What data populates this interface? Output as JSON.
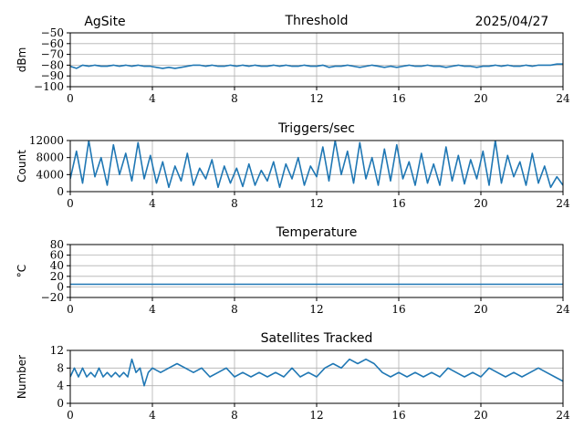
{
  "header": {
    "site": "AgSite",
    "date": "2025/04/27"
  },
  "colors": {
    "series": "#1f77b4",
    "grid": "#b0b0b0",
    "axes": "#000000"
  },
  "chart_data": [
    {
      "type": "line",
      "title": "Threshold",
      "xlabel": "",
      "ylabel": "dBm",
      "xlim": [
        0,
        24
      ],
      "ylim": [
        -100,
        -50
      ],
      "xticks": [
        0,
        4,
        8,
        12,
        16,
        20,
        24
      ],
      "yticks": [
        -100,
        -90,
        -80,
        -70,
        -60,
        -50
      ],
      "ytick_labels": [
        "−100",
        "−90",
        "−80",
        "−70",
        "−60",
        "−50"
      ],
      "grid": true,
      "series": [
        {
          "x": [
            0,
            0.3,
            0.6,
            0.9,
            1.2,
            1.5,
            1.8,
            2.1,
            2.4,
            2.7,
            3.0,
            3.3,
            3.6,
            3.9,
            4.2,
            4.5,
            4.8,
            5.1,
            5.4,
            5.7,
            6.0,
            6.3,
            6.6,
            6.9,
            7.2,
            7.5,
            7.8,
            8.1,
            8.4,
            8.7,
            9.0,
            9.3,
            9.6,
            9.9,
            10.2,
            10.5,
            10.8,
            11.1,
            11.4,
            11.7,
            12.0,
            12.3,
            12.6,
            12.9,
            13.2,
            13.5,
            13.8,
            14.1,
            14.4,
            14.7,
            15.0,
            15.3,
            15.6,
            15.9,
            16.2,
            16.5,
            16.8,
            17.1,
            17.4,
            17.7,
            18.0,
            18.3,
            18.6,
            18.9,
            19.2,
            19.5,
            19.8,
            20.1,
            20.4,
            20.7,
            21.0,
            21.3,
            21.6,
            21.9,
            22.2,
            22.5,
            22.8,
            23.1,
            23.4,
            23.7,
            24.0
          ],
          "y": [
            -81,
            -83,
            -80,
            -81,
            -80,
            -81,
            -81,
            -80,
            -81,
            -80,
            -81,
            -80,
            -81,
            -81,
            -82,
            -83,
            -82,
            -83,
            -82,
            -81,
            -80,
            -80,
            -81,
            -80,
            -81,
            -81,
            -80,
            -81,
            -80,
            -81,
            -80,
            -81,
            -81,
            -80,
            -81,
            -80,
            -81,
            -81,
            -80,
            -81,
            -81,
            -80,
            -82,
            -81,
            -81,
            -80,
            -81,
            -82,
            -81,
            -80,
            -81,
            -82,
            -81,
            -82,
            -81,
            -80,
            -81,
            -81,
            -80,
            -81,
            -81,
            -82,
            -81,
            -80,
            -81,
            -81,
            -82,
            -81,
            -81,
            -80,
            -81,
            -80,
            -81,
            -81,
            -80,
            -81,
            -80,
            -80,
            -80,
            -79,
            -79
          ]
        }
      ]
    },
    {
      "type": "line",
      "title": "Triggers/sec",
      "xlabel": "",
      "ylabel": "Count",
      "xlim": [
        0,
        24
      ],
      "ylim": [
        0,
        12000
      ],
      "xticks": [
        0,
        4,
        8,
        12,
        16,
        20,
        24
      ],
      "yticks": [
        0,
        4000,
        8000,
        12000
      ],
      "ytick_labels": [
        "0",
        "4000",
        "8000",
        "12000"
      ],
      "grid": true,
      "series": [
        {
          "x": [
            0,
            0.3,
            0.6,
            0.9,
            1.2,
            1.5,
            1.8,
            2.1,
            2.4,
            2.7,
            3.0,
            3.3,
            3.6,
            3.9,
            4.2,
            4.5,
            4.8,
            5.1,
            5.4,
            5.7,
            6.0,
            6.3,
            6.6,
            6.9,
            7.2,
            7.5,
            7.8,
            8.1,
            8.4,
            8.7,
            9.0,
            9.3,
            9.6,
            9.9,
            10.2,
            10.5,
            10.8,
            11.1,
            11.4,
            11.7,
            12.0,
            12.3,
            12.6,
            12.9,
            13.2,
            13.5,
            13.8,
            14.1,
            14.4,
            14.7,
            15.0,
            15.3,
            15.6,
            15.9,
            16.2,
            16.5,
            16.8,
            17.1,
            17.4,
            17.7,
            18.0,
            18.3,
            18.6,
            18.9,
            19.2,
            19.5,
            19.8,
            20.1,
            20.4,
            20.7,
            21.0,
            21.3,
            21.6,
            21.9,
            22.2,
            22.5,
            22.8,
            23.1,
            23.4,
            23.7,
            24.0
          ],
          "y": [
            3000,
            9500,
            2000,
            12000,
            3500,
            8000,
            1500,
            11000,
            4000,
            9000,
            2500,
            11500,
            3000,
            8500,
            2000,
            7000,
            1000,
            6000,
            2500,
            9000,
            1500,
            5500,
            3000,
            7500,
            1000,
            6000,
            2000,
            5500,
            1200,
            6500,
            1500,
            5000,
            2500,
            7000,
            1000,
            6500,
            3000,
            8000,
            1500,
            6000,
            3500,
            10500,
            2500,
            12000,
            4000,
            9500,
            2000,
            11500,
            3000,
            8000,
            1500,
            10000,
            2500,
            11000,
            3000,
            7000,
            1500,
            9000,
            2000,
            6500,
            1500,
            10500,
            2500,
            8500,
            1800,
            7500,
            3000,
            9500,
            1500,
            12000,
            2000,
            8500,
            3500,
            7000,
            1500,
            9000,
            2000,
            6000,
            1000,
            3500,
            1500
          ]
        }
      ]
    },
    {
      "type": "line",
      "title": "Temperature",
      "xlabel": "",
      "ylabel": "°C",
      "xlim": [
        0,
        24
      ],
      "ylim": [
        -20,
        80
      ],
      "xticks": [
        0,
        4,
        8,
        12,
        16,
        20,
        24
      ],
      "yticks": [
        -20,
        0,
        20,
        40,
        60,
        80
      ],
      "ytick_labels": [
        "−20",
        "0",
        "20",
        "40",
        "60",
        "80"
      ],
      "grid": true,
      "series": [
        {
          "x": [
            0,
            24
          ],
          "y": [
            5,
            5
          ]
        }
      ]
    },
    {
      "type": "line",
      "title": "Satellites Tracked",
      "xlabel": "",
      "ylabel": "Number",
      "xlim": [
        0,
        24
      ],
      "ylim": [
        0,
        12
      ],
      "xticks": [
        0,
        4,
        8,
        12,
        16,
        20,
        24
      ],
      "yticks": [
        0,
        4,
        8,
        12
      ],
      "ytick_labels": [
        "0",
        "4",
        "8",
        "12"
      ],
      "grid": true,
      "series": [
        {
          "x": [
            0,
            0.2,
            0.4,
            0.6,
            0.8,
            1.0,
            1.2,
            1.4,
            1.6,
            1.8,
            2.0,
            2.2,
            2.4,
            2.6,
            2.8,
            3.0,
            3.2,
            3.4,
            3.6,
            3.8,
            4.0,
            4.4,
            4.8,
            5.2,
            5.6,
            6.0,
            6.4,
            6.8,
            7.2,
            7.6,
            8.0,
            8.4,
            8.8,
            9.2,
            9.6,
            10.0,
            10.4,
            10.8,
            11.2,
            11.6,
            12.0,
            12.4,
            12.8,
            13.2,
            13.6,
            14.0,
            14.4,
            14.8,
            15.2,
            15.6,
            16.0,
            16.4,
            16.8,
            17.2,
            17.6,
            18.0,
            18.4,
            18.8,
            19.2,
            19.6,
            20.0,
            20.4,
            20.8,
            21.2,
            21.6,
            22.0,
            22.4,
            22.8,
            23.2,
            23.6,
            24.0
          ],
          "y": [
            6,
            8,
            6,
            8,
            6,
            7,
            6,
            8,
            6,
            7,
            6,
            7,
            6,
            7,
            6,
            10,
            7,
            8,
            4,
            7,
            8,
            7,
            8,
            9,
            8,
            7,
            8,
            6,
            7,
            8,
            6,
            7,
            6,
            7,
            6,
            7,
            6,
            8,
            6,
            7,
            6,
            8,
            9,
            8,
            10,
            9,
            10,
            9,
            7,
            6,
            7,
            6,
            7,
            6,
            7,
            6,
            8,
            7,
            6,
            7,
            6,
            8,
            7,
            6,
            7,
            6,
            7,
            8,
            7,
            6,
            5
          ]
        }
      ]
    }
  ]
}
